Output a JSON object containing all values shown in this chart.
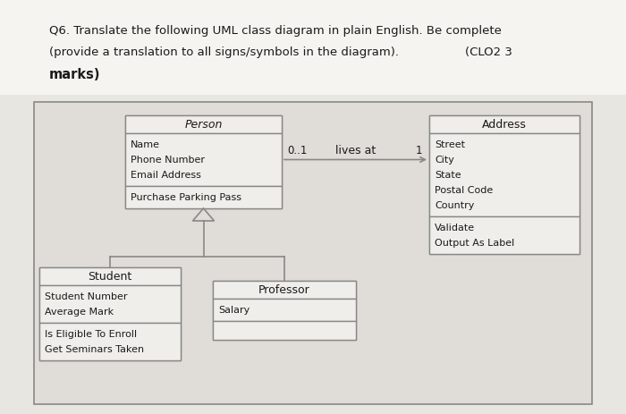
{
  "fig_bg": "#e8e6e0",
  "header_bg": "#f0eeea",
  "diagram_bg": "#e0ddd8",
  "box_fill": "#f0eeea",
  "box_edge": "#888888",
  "text_color": "#1a1a1a",
  "title_line1": "Q6. Translate the following UML class diagram in plain English. Be complete",
  "title_line2": "(provide a translation to all signs/symbols in the diagram).",
  "title_line2_right": "(CLO2 3",
  "title_line3": "marks)",
  "person_title": "Person",
  "person_attrs": [
    "Name",
    "Phone Number",
    "Email Address"
  ],
  "person_methods": [
    "Purchase Parking Pass"
  ],
  "address_title": "Address",
  "address_attrs": [
    "Street",
    "City",
    "State",
    "Postal Code",
    "Country"
  ],
  "address_methods": [
    "Validate",
    "Output As Label"
  ],
  "student_title": "Student",
  "student_attrs": [
    "Student Number",
    "Average Mark"
  ],
  "student_methods": [
    "Is Eligible To Enroll",
    "Get Seminars Taken"
  ],
  "professor_title": "Professor",
  "professor_attrs": [
    "Salary"
  ],
  "professor_methods": [],
  "assoc_label": "lives at",
  "assoc_left": "0..1",
  "assoc_right": "1"
}
